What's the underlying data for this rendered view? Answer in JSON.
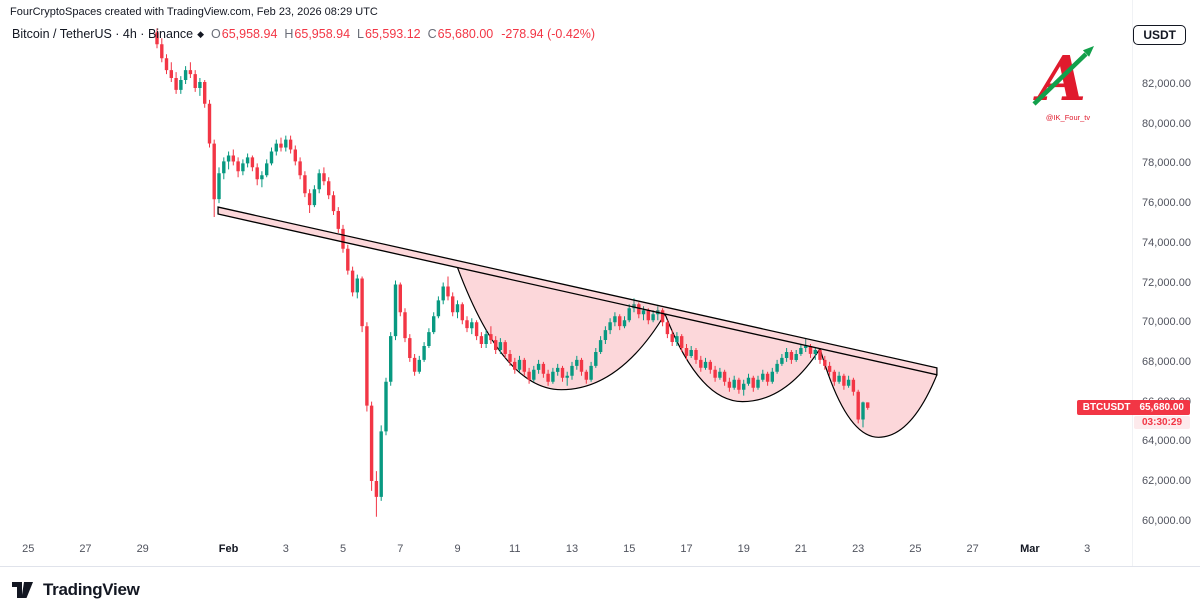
{
  "watermark_top": "FourCryptoSpaces created with TradingView.com, Feb 23, 2026 08:29 UTC",
  "header": {
    "symbol_title": "Bitcoin / TetherUS · 4h · Binance",
    "exchange_icon_glyph": "◆",
    "ohlc": {
      "o_label": "O",
      "o": "65,958.94",
      "h_label": "H",
      "h": "65,958.94",
      "l_label": "L",
      "l": "65,593.12",
      "c_label": "C",
      "c": "65,680.00",
      "change": "-278.94 (-0.42%)"
    },
    "currency_button": "USDT"
  },
  "last_price_badge": {
    "symbol": "BTCUSDT",
    "price": "65,680.00",
    "countdown": "03:30:29"
  },
  "channel_watermark": {
    "letter": "A",
    "handle": "@IK_Four_tv"
  },
  "footer": {
    "brand": "TradingView"
  },
  "chart_data": {
    "type": "candlestick",
    "symbol": "BTCUSDT",
    "timeframe": "4h",
    "exchange": "Binance",
    "ohlc_current": {
      "open": 65958.94,
      "high": 65958.94,
      "low": 65593.12,
      "close": 65680.0,
      "change": -278.94,
      "change_pct": -0.42
    },
    "colors": {
      "up": "#089981",
      "down": "#f23645",
      "annotation_fill": "rgba(242,54,69,0.20)",
      "annotation_stroke": "#000000",
      "badge": "#f23645"
    },
    "y_axis": {
      "min": 60000,
      "max": 82000,
      "tick_step": 2000,
      "ticks": [
        {
          "value": 82000,
          "label": "82,000.00"
        },
        {
          "value": 80000,
          "label": "80,000.00"
        },
        {
          "value": 78000,
          "label": "78,000.00"
        },
        {
          "value": 76000,
          "label": "76,000.00"
        },
        {
          "value": 74000,
          "label": "74,000.00"
        },
        {
          "value": 72000,
          "label": "72,000.00"
        },
        {
          "value": 70000,
          "label": "70,000.00"
        },
        {
          "value": 68000,
          "label": "68,000.00"
        },
        {
          "value": 66000,
          "label": "66,000.00"
        },
        {
          "value": 64000,
          "label": "64,000.00"
        },
        {
          "value": 62000,
          "label": "62,000.00"
        },
        {
          "value": 60000,
          "label": "60,000.00"
        }
      ]
    },
    "x_axis": {
      "ticks": [
        {
          "label": "25",
          "i": -27
        },
        {
          "label": "27",
          "i": -15
        },
        {
          "label": "29",
          "i": -3
        },
        {
          "label": "Feb",
          "i": 15,
          "month": true
        },
        {
          "label": "3",
          "i": 27
        },
        {
          "label": "5",
          "i": 39
        },
        {
          "label": "7",
          "i": 51
        },
        {
          "label": "9",
          "i": 63
        },
        {
          "label": "11",
          "i": 75
        },
        {
          "label": "13",
          "i": 87
        },
        {
          "label": "15",
          "i": 99
        },
        {
          "label": "17",
          "i": 111
        },
        {
          "label": "19",
          "i": 123
        },
        {
          "label": "21",
          "i": 135
        },
        {
          "label": "23",
          "i": 147
        },
        {
          "label": "25",
          "i": 159
        },
        {
          "label": "27",
          "i": 171
        },
        {
          "label": "Mar",
          "i": 183,
          "month": true
        },
        {
          "label": "3",
          "i": 195
        }
      ]
    },
    "annotations": {
      "trend_channel": {
        "start_i": 12.8,
        "start_price": 75800,
        "end_i": 163.5,
        "end_price": 67700,
        "width_price": 350
      },
      "cups": [
        {
          "from_i": 63,
          "to_i": 106.5,
          "bottom_price": 66600
        },
        {
          "from_i": 106.5,
          "to_i": 139,
          "bottom_price": 66000
        },
        {
          "from_i": 139,
          "to_i": 163.5,
          "bottom_price": 64200
        }
      ]
    },
    "candles": [
      [
        84600,
        84800,
        83800,
        84000
      ],
      [
        84000,
        84300,
        83100,
        83300
      ],
      [
        83300,
        83500,
        82500,
        82700
      ],
      [
        82700,
        83100,
        82100,
        82300
      ],
      [
        82300,
        82600,
        81500,
        81700
      ],
      [
        81700,
        82400,
        81500,
        82200
      ],
      [
        82200,
        82900,
        82000,
        82700
      ],
      [
        82700,
        83100,
        82300,
        82500
      ],
      [
        82500,
        82700,
        81600,
        81800
      ],
      [
        81800,
        82300,
        81400,
        82100
      ],
      [
        82100,
        82200,
        80800,
        81000
      ],
      [
        81000,
        81200,
        78800,
        79000
      ],
      [
        79000,
        79200,
        75300,
        76200
      ],
      [
        76200,
        77800,
        76000,
        77500
      ],
      [
        77500,
        78300,
        77200,
        78100
      ],
      [
        78100,
        78600,
        77700,
        78400
      ],
      [
        78400,
        78700,
        77900,
        78100
      ],
      [
        78100,
        78300,
        77300,
        77600
      ],
      [
        77600,
        78200,
        77400,
        78000
      ],
      [
        78000,
        78500,
        77800,
        78300
      ],
      [
        78300,
        78400,
        77600,
        77800
      ],
      [
        77800,
        78000,
        76900,
        77200
      ],
      [
        77200,
        77600,
        76800,
        77400
      ],
      [
        77400,
        78200,
        77300,
        78000
      ],
      [
        78000,
        78800,
        77900,
        78600
      ],
      [
        78600,
        79200,
        78400,
        79000
      ],
      [
        79000,
        79300,
        78600,
        78800
      ],
      [
        78800,
        79400,
        78600,
        79200
      ],
      [
        79200,
        79400,
        78500,
        78700
      ],
      [
        78700,
        78900,
        77900,
        78100
      ],
      [
        78100,
        78300,
        77200,
        77400
      ],
      [
        77400,
        77600,
        76300,
        76500
      ],
      [
        76500,
        76700,
        75500,
        75900
      ],
      [
        75900,
        76900,
        75800,
        76700
      ],
      [
        76700,
        77700,
        76500,
        77500
      ],
      [
        77500,
        77800,
        76900,
        77100
      ],
      [
        77100,
        77300,
        76200,
        76400
      ],
      [
        76400,
        76600,
        75400,
        75600
      ],
      [
        75600,
        75800,
        74500,
        74700
      ],
      [
        74700,
        74900,
        73500,
        73700
      ],
      [
        73700,
        73900,
        72400,
        72600
      ],
      [
        72600,
        72800,
        71300,
        71500
      ],
      [
        71500,
        72400,
        71200,
        72200
      ],
      [
        72200,
        72300,
        69500,
        69800
      ],
      [
        69800,
        70000,
        65500,
        65800
      ],
      [
        65800,
        66000,
        61500,
        62000
      ],
      [
        62000,
        62500,
        60200,
        61200
      ],
      [
        61200,
        64800,
        61000,
        64500
      ],
      [
        64500,
        67200,
        64300,
        67000
      ],
      [
        67000,
        69500,
        66800,
        69300
      ],
      [
        69300,
        72100,
        69100,
        71900
      ],
      [
        71900,
        72000,
        70300,
        70500
      ],
      [
        70500,
        70700,
        69000,
        69200
      ],
      [
        69200,
        69400,
        68000,
        68200
      ],
      [
        68200,
        68400,
        67300,
        67500
      ],
      [
        67500,
        68300,
        67400,
        68100
      ],
      [
        68100,
        69000,
        68000,
        68800
      ],
      [
        68800,
        69700,
        68700,
        69500
      ],
      [
        69500,
        70500,
        69400,
        70300
      ],
      [
        70300,
        71300,
        70200,
        71100
      ],
      [
        71100,
        72000,
        70900,
        71800
      ],
      [
        71800,
        72300,
        71100,
        71300
      ],
      [
        71300,
        71500,
        70300,
        70500
      ],
      [
        70500,
        71100,
        70200,
        70900
      ],
      [
        70900,
        71000,
        69900,
        70100
      ],
      [
        70100,
        70300,
        69500,
        69700
      ],
      [
        69700,
        70200,
        69400,
        70000
      ],
      [
        70000,
        70100,
        69100,
        69300
      ],
      [
        69300,
        69500,
        68700,
        68900
      ],
      [
        68900,
        69600,
        68700,
        69400
      ],
      [
        69400,
        69800,
        68900,
        69100
      ],
      [
        69100,
        69300,
        68400,
        68600
      ],
      [
        68600,
        69200,
        68400,
        69000
      ],
      [
        69000,
        69100,
        68200,
        68400
      ],
      [
        68400,
        68600,
        67800,
        68000
      ],
      [
        68000,
        68200,
        67400,
        67600
      ],
      [
        67600,
        68300,
        67500,
        68100
      ],
      [
        68100,
        68200,
        67300,
        67500
      ],
      [
        67500,
        67700,
        66900,
        67100
      ],
      [
        67100,
        67800,
        67000,
        67600
      ],
      [
        67600,
        68100,
        67400,
        67900
      ],
      [
        67900,
        68000,
        67200,
        67400
      ],
      [
        67400,
        67600,
        66800,
        67000
      ],
      [
        67000,
        67700,
        66900,
        67500
      ],
      [
        67500,
        67900,
        67300,
        67700
      ],
      [
        67700,
        67800,
        67000,
        67200
      ],
      [
        67200,
        67500,
        66800,
        67300
      ],
      [
        67300,
        68000,
        67100,
        67800
      ],
      [
        67800,
        68300,
        67600,
        68100
      ],
      [
        68100,
        68200,
        67300,
        67500
      ],
      [
        67500,
        67600,
        66900,
        67100
      ],
      [
        67100,
        68000,
        67000,
        67800
      ],
      [
        67800,
        68700,
        67700,
        68500
      ],
      [
        68500,
        69300,
        68400,
        69100
      ],
      [
        69100,
        69800,
        68900,
        69600
      ],
      [
        69600,
        70200,
        69400,
        70000
      ],
      [
        70000,
        70500,
        69800,
        70300
      ],
      [
        70300,
        70400,
        69600,
        69800
      ],
      [
        69800,
        70300,
        69700,
        70100
      ],
      [
        70100,
        70900,
        70000,
        70700
      ],
      [
        70700,
        71200,
        70500,
        70900
      ],
      [
        70900,
        71000,
        70200,
        70400
      ],
      [
        70400,
        70800,
        70100,
        70600
      ],
      [
        70600,
        70700,
        69900,
        70100
      ],
      [
        70100,
        70600,
        70000,
        70400
      ],
      [
        70400,
        70800,
        70100,
        70600
      ],
      [
        70600,
        70700,
        69800,
        70000
      ],
      [
        70000,
        70100,
        69200,
        69400
      ],
      [
        69400,
        69600,
        68800,
        69000
      ],
      [
        69000,
        69500,
        68800,
        69300
      ],
      [
        69300,
        69400,
        68500,
        68700
      ],
      [
        68700,
        68900,
        68100,
        68300
      ],
      [
        68300,
        68800,
        68200,
        68600
      ],
      [
        68600,
        68700,
        67900,
        68100
      ],
      [
        68100,
        68300,
        67500,
        67700
      ],
      [
        67700,
        68200,
        67600,
        68000
      ],
      [
        68000,
        68100,
        67400,
        67600
      ],
      [
        67600,
        67800,
        67000,
        67200
      ],
      [
        67200,
        67700,
        67100,
        67500
      ],
      [
        67500,
        67600,
        66800,
        67000
      ],
      [
        67000,
        67200,
        66500,
        66700
      ],
      [
        66700,
        67300,
        66600,
        67100
      ],
      [
        67100,
        67200,
        66400,
        66600
      ],
      [
        66600,
        67100,
        66300,
        66900
      ],
      [
        66900,
        67400,
        66800,
        67200
      ],
      [
        67200,
        67300,
        66500,
        66700
      ],
      [
        66700,
        67300,
        66600,
        67100
      ],
      [
        67100,
        67600,
        67000,
        67400
      ],
      [
        67400,
        67500,
        66800,
        67000
      ],
      [
        67000,
        67700,
        66900,
        67500
      ],
      [
        67500,
        68100,
        67400,
        67900
      ],
      [
        67900,
        68400,
        67800,
        68200
      ],
      [
        68200,
        68700,
        68000,
        68500
      ],
      [
        68500,
        68600,
        67900,
        68100
      ],
      [
        68100,
        68600,
        68000,
        68400
      ],
      [
        68400,
        68900,
        68300,
        68700
      ],
      [
        68700,
        69200,
        68500,
        68800
      ],
      [
        68800,
        68900,
        68200,
        68400
      ],
      [
        68400,
        68700,
        68100,
        68600
      ],
      [
        68600,
        68700,
        67900,
        68100
      ],
      [
        68100,
        68300,
        67600,
        67800
      ],
      [
        67800,
        68000,
        67300,
        67500
      ],
      [
        67500,
        67600,
        66800,
        67000
      ],
      [
        67000,
        67500,
        66900,
        67300
      ],
      [
        67300,
        67400,
        66600,
        66800
      ],
      [
        66800,
        67300,
        66700,
        67100
      ],
      [
        67100,
        67200,
        66300,
        66500
      ],
      [
        66500,
        66600,
        64900,
        65100
      ],
      [
        65100,
        66000,
        64700,
        65960
      ],
      [
        65958.94,
        65958.94,
        65593.12,
        65680
      ]
    ]
  }
}
